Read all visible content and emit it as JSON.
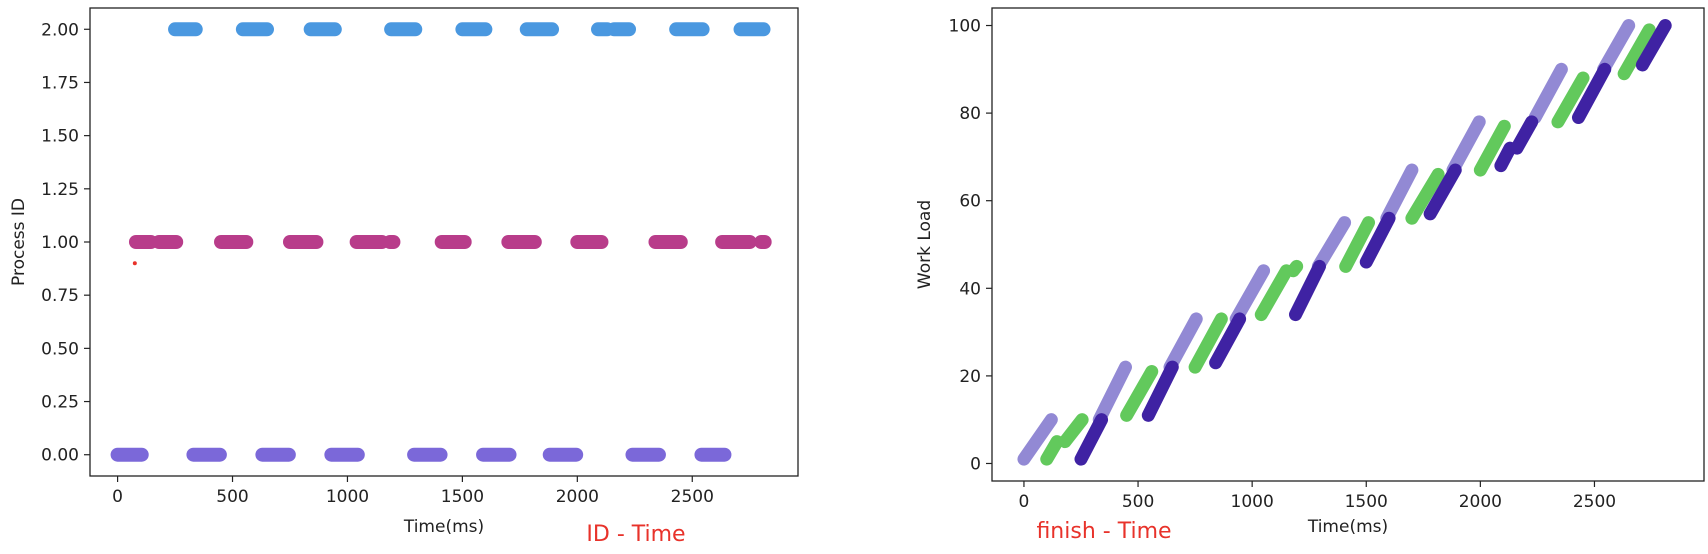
{
  "captions": {
    "left": "ID - Time",
    "right": "finish - Time"
  },
  "chart_data": [
    {
      "type": "scatter",
      "title": "",
      "xlabel": "Time(ms)",
      "ylabel": "Process ID",
      "xlim": [
        -120,
        2960
      ],
      "ylim": [
        -0.1,
        2.1
      ],
      "xticks": [
        0,
        500,
        1000,
        1500,
        2000,
        2500
      ],
      "xtick_labels": [
        "0",
        "500",
        "1000",
        "1500",
        "2000",
        "2500"
      ],
      "yticks": [
        0.0,
        0.25,
        0.5,
        0.75,
        1.0,
        1.25,
        1.5,
        1.75,
        2.0
      ],
      "ytick_labels": [
        "0.00",
        "0.25",
        "0.50",
        "0.75",
        "1.00",
        "1.25",
        "1.50",
        "1.75",
        "2.00"
      ],
      "grid": false,
      "series": [
        {
          "process_id": 0,
          "color": "#7b68d9",
          "segments": [
            [
              0,
              105
            ],
            [
              330,
              445
            ],
            [
              630,
              745
            ],
            [
              930,
              1045
            ],
            [
              1290,
              1405
            ],
            [
              1590,
              1705
            ],
            [
              1880,
              1995
            ],
            [
              2240,
              2355
            ],
            [
              2540,
              2640
            ]
          ]
        },
        {
          "process_id": 1,
          "color": "#b83c8a",
          "segments": [
            [
              80,
              145
            ],
            [
              180,
              255
            ],
            [
              450,
              560
            ],
            [
              750,
              865
            ],
            [
              1040,
              1150
            ],
            [
              1185,
              1200
            ],
            [
              1410,
              1510
            ],
            [
              1700,
              1815
            ],
            [
              2000,
              2105
            ],
            [
              2340,
              2450
            ],
            [
              2630,
              2750
            ],
            [
              2800,
              2815
            ]
          ]
        },
        {
          "process_id": 2,
          "color": "#4a98e0",
          "segments": [
            [
              250,
              340
            ],
            [
              545,
              650
            ],
            [
              840,
              945
            ],
            [
              1190,
              1295
            ],
            [
              1500,
              1600
            ],
            [
              1780,
              1890
            ],
            [
              2090,
              2130
            ],
            [
              2160,
              2225
            ],
            [
              2430,
              2545
            ],
            [
              2710,
              2810
            ]
          ]
        }
      ],
      "annotations": [
        {
          "x": 75,
          "y": 0.9,
          "color": "#e8322a",
          "marker": "dot"
        }
      ]
    },
    {
      "type": "line",
      "title": "",
      "xlabel": "Time(ms)",
      "ylabel": "Work Load",
      "xlim": [
        -140,
        2980
      ],
      "ylim": [
        -4,
        104
      ],
      "xticks": [
        0,
        500,
        1000,
        1500,
        2000,
        2500
      ],
      "xtick_labels": [
        "0",
        "500",
        "1000",
        "1500",
        "2000",
        "2500"
      ],
      "yticks": [
        0,
        20,
        40,
        60,
        80,
        100
      ],
      "ytick_labels": [
        "0",
        "20",
        "40",
        "60",
        "80",
        "100"
      ],
      "grid": false,
      "series": [
        {
          "color": "#9289d4",
          "segments": [
            [
              [
                0,
                1
              ],
              [
                120,
                10
              ]
            ],
            [
              [
                330,
                10
              ],
              [
                445,
                22
              ]
            ],
            [
              [
                640,
                22
              ],
              [
                755,
                33
              ]
            ],
            [
              [
                930,
                33
              ],
              [
                1050,
                44
              ]
            ],
            [
              [
                1290,
                45
              ],
              [
                1405,
                55
              ]
            ],
            [
              [
                1590,
                56
              ],
              [
                1700,
                67
              ]
            ],
            [
              [
                1880,
                67
              ],
              [
                1995,
                78
              ]
            ],
            [
              [
                2240,
                79
              ],
              [
                2355,
                90
              ]
            ],
            [
              [
                2540,
                90
              ],
              [
                2650,
                100
              ]
            ]
          ]
        },
        {
          "color": "#62c95c",
          "segments": [
            [
              [
                100,
                1
              ],
              [
                145,
                5
              ]
            ],
            [
              [
                180,
                5
              ],
              [
                255,
                10
              ]
            ],
            [
              [
                450,
                11
              ],
              [
                560,
                21
              ]
            ],
            [
              [
                750,
                22
              ],
              [
                865,
                33
              ]
            ],
            [
              [
                1040,
                34
              ],
              [
                1150,
                44
              ]
            ],
            [
              [
                1180,
                44
              ],
              [
                1195,
                45
              ]
            ],
            [
              [
                1410,
                45
              ],
              [
                1510,
                55
              ]
            ],
            [
              [
                1700,
                56
              ],
              [
                1815,
                66
              ]
            ],
            [
              [
                2000,
                67
              ],
              [
                2105,
                77
              ]
            ],
            [
              [
                2340,
                78
              ],
              [
                2450,
                88
              ]
            ],
            [
              [
                2630,
                89
              ],
              [
                2740,
                99
              ]
            ]
          ]
        },
        {
          "color": "#3f22a3",
          "segments": [
            [
              [
                250,
                1
              ],
              [
                340,
                10
              ]
            ],
            [
              [
                545,
                11
              ],
              [
                650,
                22
              ]
            ],
            [
              [
                840,
                23
              ],
              [
                945,
                33
              ]
            ],
            [
              [
                1190,
                34
              ],
              [
                1295,
                45
              ]
            ],
            [
              [
                1500,
                46
              ],
              [
                1600,
                56
              ]
            ],
            [
              [
                1780,
                57
              ],
              [
                1890,
                67
              ]
            ],
            [
              [
                2090,
                68
              ],
              [
                2130,
                72
              ]
            ],
            [
              [
                2160,
                72
              ],
              [
                2225,
                78
              ]
            ],
            [
              [
                2430,
                79
              ],
              [
                2545,
                90
              ]
            ],
            [
              [
                2710,
                91
              ],
              [
                2810,
                100
              ]
            ]
          ]
        }
      ]
    }
  ]
}
